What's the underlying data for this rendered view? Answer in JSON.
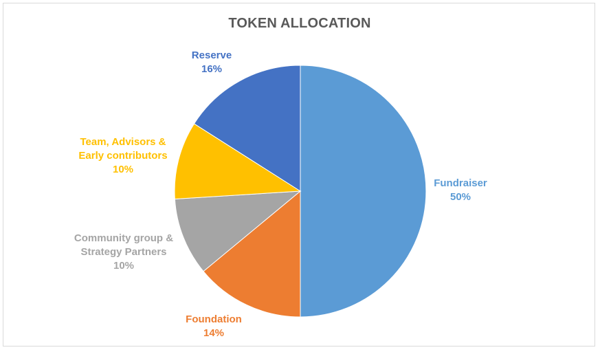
{
  "chart_data": {
    "type": "pie",
    "title": "TOKEN ALLOCATION",
    "slices": [
      {
        "label_lines": [
          "Fundraiser"
        ],
        "value": 50,
        "value_label": "50%",
        "color": "#5B9BD5"
      },
      {
        "label_lines": [
          "Foundation"
        ],
        "value": 14,
        "value_label": "14%",
        "color": "#ED7D31"
      },
      {
        "label_lines": [
          "Community group &",
          "Strategy Partners"
        ],
        "value": 10,
        "value_label": "10%",
        "color": "#A5A5A5"
      },
      {
        "label_lines": [
          "Team, Advisors &",
          "Early contributors"
        ],
        "value": 10,
        "value_label": "10%",
        "color": "#FFC000"
      },
      {
        "label_lines": [
          "Reserve"
        ],
        "value": 16,
        "value_label": "16%",
        "color": "#4472C4"
      }
    ],
    "legend": "none",
    "data_labels": "outside-end, category name and percentage"
  }
}
